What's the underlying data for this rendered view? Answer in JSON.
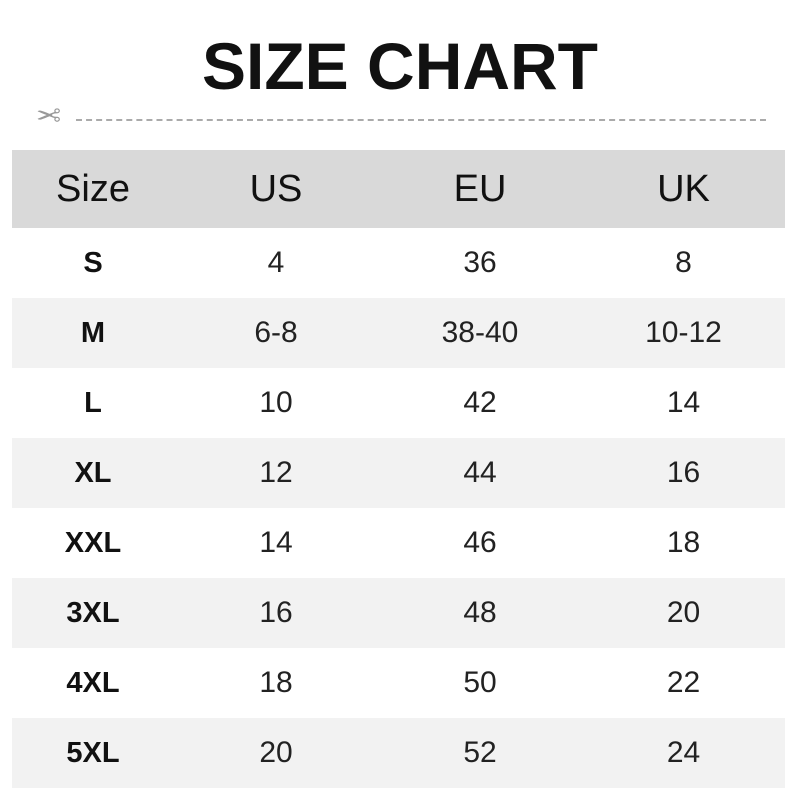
{
  "title": "SIZE CHART",
  "colors": {
    "header_bg": "#d9d9d9",
    "alt_row_bg": "#f2f2f2",
    "text": "#111111",
    "cut_line": "#aaaaaa"
  },
  "icons": {
    "cut_line": "scissors-icon"
  },
  "chart_data": {
    "type": "table",
    "title": "SIZE CHART",
    "columns": [
      "Size",
      "US",
      "EU",
      "UK"
    ],
    "rows": [
      [
        "S",
        "4",
        "36",
        "8"
      ],
      [
        "M",
        "6-8",
        "38-40",
        "10-12"
      ],
      [
        "L",
        "10",
        "42",
        "14"
      ],
      [
        "XL",
        "12",
        "44",
        "16"
      ],
      [
        "XXL",
        "14",
        "46",
        "18"
      ],
      [
        "3XL",
        "16",
        "48",
        "20"
      ],
      [
        "4XL",
        "18",
        "50",
        "22"
      ],
      [
        "5XL",
        "20",
        "52",
        "24"
      ]
    ]
  }
}
